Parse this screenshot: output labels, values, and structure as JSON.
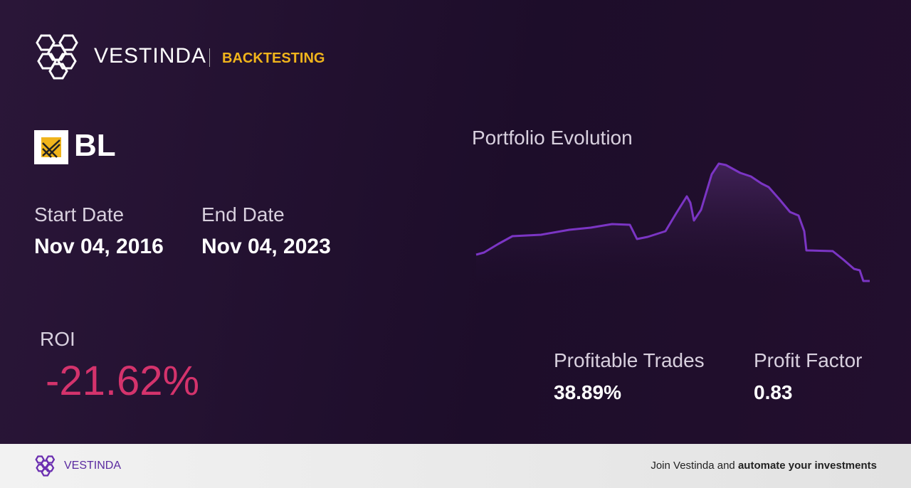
{
  "header": {
    "brand": "VESTINDA",
    "section": "BACKTESTING"
  },
  "ticker": "BL",
  "start_date": {
    "label": "Start Date",
    "value": "Nov 04, 2016"
  },
  "end_date": {
    "label": "End Date",
    "value": "Nov 04, 2023"
  },
  "chart_title": "Portfolio Evolution",
  "roi": {
    "label": "ROI",
    "value": "-21.62%"
  },
  "profitable_trades": {
    "label": "Profitable Trades",
    "value": "38.89%"
  },
  "profit_factor": {
    "label": "Profit Factor",
    "value": "0.83"
  },
  "footer": {
    "brand": "VESTINDA",
    "cta_prefix": "Join Vestinda and",
    "cta_bold": "automate your investments"
  }
}
